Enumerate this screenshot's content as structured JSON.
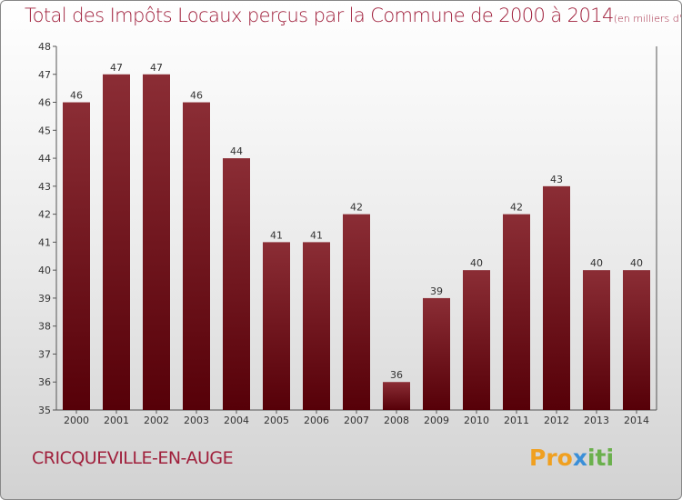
{
  "title": "Total des Impôts Locaux perçus par la Commune de 2000 à 2014",
  "unit": "(en milliers d'€)",
  "commune": "CRICQUEVILLE-EN-AUGE",
  "logo": {
    "part1": "Pro",
    "part2": "x",
    "part3": "iti"
  },
  "colors": {
    "accent": "#a0203c",
    "bar_top": "#8b2d35",
    "bar_bottom": "#560008"
  },
  "chart_data": {
    "type": "bar",
    "categories": [
      "2000",
      "2001",
      "2002",
      "2003",
      "2004",
      "2005",
      "2006",
      "2007",
      "2008",
      "2009",
      "2010",
      "2011",
      "2012",
      "2013",
      "2014"
    ],
    "values": [
      46,
      47,
      47,
      46,
      44,
      41,
      41,
      42,
      36,
      39,
      40,
      42,
      43,
      40,
      40
    ],
    "ylim": [
      35,
      48
    ],
    "yticks": [
      35,
      36,
      37,
      38,
      39,
      40,
      41,
      42,
      43,
      44,
      45,
      46,
      47,
      48
    ],
    "title": "Total des Impôts Locaux perçus par la Commune de 2000 à 2014",
    "xlabel": "",
    "ylabel": "",
    "grid": false
  }
}
